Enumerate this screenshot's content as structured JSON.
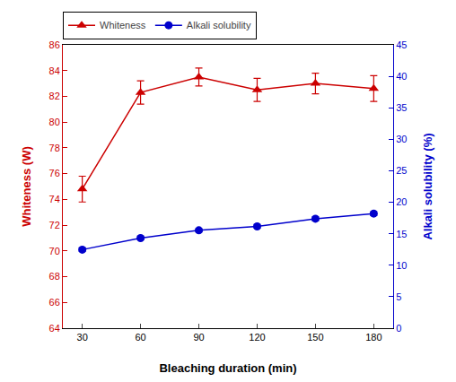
{
  "chart_data": {
    "type": "line",
    "xlabel": "Bleaching duration (min)",
    "ylabel": "Whiteness (W)",
    "y2label": "Alkali solubility (%)",
    "x": [
      30,
      60,
      90,
      120,
      150,
      180
    ],
    "xlim": [
      20,
      190
    ],
    "xticks": [
      30,
      60,
      90,
      120,
      150,
      180
    ],
    "ylim": [
      64,
      86
    ],
    "yticks": [
      64,
      66,
      68,
      70,
      72,
      74,
      76,
      78,
      80,
      82,
      84,
      86
    ],
    "y2lim": [
      0,
      45
    ],
    "y2ticks": [
      0,
      5,
      10,
      15,
      20,
      25,
      30,
      35,
      40,
      45
    ],
    "grid": false,
    "legend": "upper left",
    "series": [
      {
        "name": "Whiteness",
        "color": "#cc0000",
        "marker": "triangle",
        "line_style": "solid",
        "values": [
          74.8,
          82.3,
          83.5,
          82.5,
          83.0,
          82.6
        ],
        "errors": [
          1.0,
          0.9,
          0.7,
          0.9,
          0.8,
          1.0
        ]
      },
      {
        "name": "Alkali solubility",
        "color": "#0000cc",
        "marker": "circle",
        "line_style": "solid",
        "axis": "y2",
        "values": [
          12.477272727272727,
          14.318181818181818,
          15.545454545454545,
          16.15909090909091,
          17.386363636363637,
          18.204545454545453
        ],
        "errors": [
          0.24545454545454545,
          0.24545454545454545,
          0.24545454545454545,
          0.24545454545454545,
          0.3068181818181818,
          0.3068181818181818
        ]
      }
    ]
  }
}
